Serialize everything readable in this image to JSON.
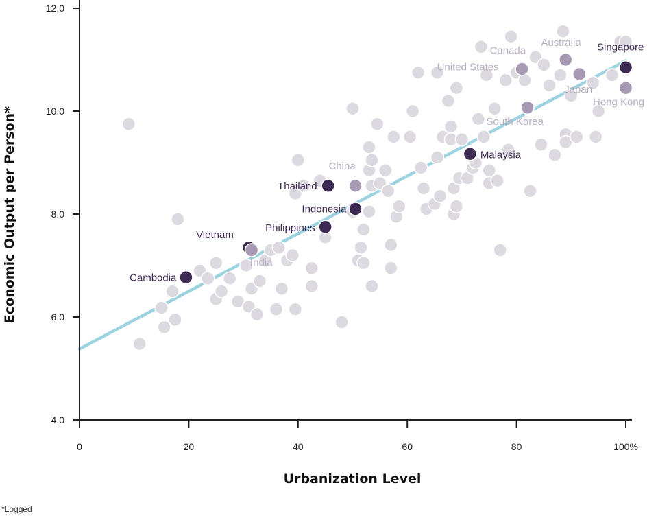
{
  "chart_data": {
    "type": "scatter",
    "title": "",
    "xlabel": "Urbanization Level",
    "ylabel": "Economic Output per Person*",
    "footnote": "*Logged",
    "xlim": [
      0,
      100
    ],
    "ylim": [
      4.0,
      12.0
    ],
    "x_ticks": [
      0,
      20,
      40,
      60,
      80,
      100
    ],
    "x_tick_labels": [
      "0",
      "20",
      "40",
      "60",
      "80",
      "100%"
    ],
    "y_ticks": [
      4.0,
      6.0,
      8.0,
      10.0,
      12.0
    ],
    "y_tick_labels": [
      "4.0",
      "6.0",
      "8.0",
      "10.0",
      "12.0"
    ],
    "colors": {
      "background_point": "#dcdae0",
      "background_point_stroke": "#ffffff",
      "asia_dark": "#3d2a52",
      "asia_light": "#a89ab5",
      "label_dark": "#3d2a52",
      "label_light": "#b5adc0",
      "trend_line": "#9dd3e0",
      "axis": "#231f20"
    },
    "trend_line": {
      "x": [
        0,
        100
      ],
      "y": [
        5.38,
        10.98
      ]
    },
    "background_points": [
      {
        "x": 9,
        "y": 9.75
      },
      {
        "x": 11,
        "y": 5.48
      },
      {
        "x": 15,
        "y": 6.18
      },
      {
        "x": 15.5,
        "y": 5.8
      },
      {
        "x": 17,
        "y": 6.5
      },
      {
        "x": 17.5,
        "y": 5.95
      },
      {
        "x": 18,
        "y": 7.9
      },
      {
        "x": 22,
        "y": 6.9
      },
      {
        "x": 23.5,
        "y": 6.75
      },
      {
        "x": 25,
        "y": 6.35
      },
      {
        "x": 25,
        "y": 7.05
      },
      {
        "x": 26,
        "y": 6.5
      },
      {
        "x": 27.5,
        "y": 6.75
      },
      {
        "x": 29,
        "y": 6.3
      },
      {
        "x": 30.5,
        "y": 7.0
      },
      {
        "x": 31,
        "y": 6.2
      },
      {
        "x": 31.5,
        "y": 6.55
      },
      {
        "x": 32.5,
        "y": 6.05
      },
      {
        "x": 33,
        "y": 6.7
      },
      {
        "x": 34,
        "y": 7.1
      },
      {
        "x": 35,
        "y": 7.3
      },
      {
        "x": 36,
        "y": 6.15
      },
      {
        "x": 36.5,
        "y": 7.35
      },
      {
        "x": 37,
        "y": 6.55
      },
      {
        "x": 38,
        "y": 7.1
      },
      {
        "x": 39,
        "y": 7.2
      },
      {
        "x": 39.5,
        "y": 8.4
      },
      {
        "x": 39.5,
        "y": 6.15
      },
      {
        "x": 40,
        "y": 9.05
      },
      {
        "x": 41,
        "y": 8.55
      },
      {
        "x": 42.5,
        "y": 6.95
      },
      {
        "x": 42.5,
        "y": 6.6
      },
      {
        "x": 44,
        "y": 8.65
      },
      {
        "x": 45,
        "y": 7.55
      },
      {
        "x": 48,
        "y": 5.9
      },
      {
        "x": 50,
        "y": 8.05
      },
      {
        "x": 50,
        "y": 10.05
      },
      {
        "x": 51,
        "y": 7.1
      },
      {
        "x": 51.5,
        "y": 7.35
      },
      {
        "x": 52,
        "y": 7.7
      },
      {
        "x": 52,
        "y": 7.05
      },
      {
        "x": 53,
        "y": 8.05
      },
      {
        "x": 53,
        "y": 8.85
      },
      {
        "x": 53,
        "y": 9.3
      },
      {
        "x": 53.5,
        "y": 8.55
      },
      {
        "x": 53.5,
        "y": 9.05
      },
      {
        "x": 53.5,
        "y": 6.6
      },
      {
        "x": 54.5,
        "y": 9.75
      },
      {
        "x": 55,
        "y": 8.6
      },
      {
        "x": 56,
        "y": 8.85
      },
      {
        "x": 56.5,
        "y": 8.45
      },
      {
        "x": 57,
        "y": 7.4
      },
      {
        "x": 57,
        "y": 6.95
      },
      {
        "x": 57.5,
        "y": 9.5
      },
      {
        "x": 58,
        "y": 7.95
      },
      {
        "x": 58.5,
        "y": 8.15
      },
      {
        "x": 60.5,
        "y": 9.5
      },
      {
        "x": 61,
        "y": 10.0
      },
      {
        "x": 62,
        "y": 10.75
      },
      {
        "x": 62.5,
        "y": 8.9
      },
      {
        "x": 63,
        "y": 8.5
      },
      {
        "x": 63.5,
        "y": 8.1
      },
      {
        "x": 65,
        "y": 8.2
      },
      {
        "x": 65.5,
        "y": 10.75
      },
      {
        "x": 65.5,
        "y": 9.1
      },
      {
        "x": 66,
        "y": 8.35
      },
      {
        "x": 66.5,
        "y": 9.5
      },
      {
        "x": 67.5,
        "y": 10.2
      },
      {
        "x": 68,
        "y": 9.7
      },
      {
        "x": 68,
        "y": 9.45
      },
      {
        "x": 68.5,
        "y": 8.5
      },
      {
        "x": 68.5,
        "y": 8.0
      },
      {
        "x": 69,
        "y": 10.45
      },
      {
        "x": 69,
        "y": 8.15
      },
      {
        "x": 69.5,
        "y": 8.7
      },
      {
        "x": 70,
        "y": 9.45
      },
      {
        "x": 71,
        "y": 8.7
      },
      {
        "x": 72,
        "y": 8.9
      },
      {
        "x": 72.5,
        "y": 9.0
      },
      {
        "x": 73,
        "y": 9.85
      },
      {
        "x": 73.5,
        "y": 11.25
      },
      {
        "x": 74,
        "y": 9.5
      },
      {
        "x": 74.5,
        "y": 10.7
      },
      {
        "x": 75,
        "y": 8.85
      },
      {
        "x": 75,
        "y": 8.6
      },
      {
        "x": 76,
        "y": 10.05
      },
      {
        "x": 76.5,
        "y": 8.65
      },
      {
        "x": 77,
        "y": 7.3
      },
      {
        "x": 78,
        "y": 10.6
      },
      {
        "x": 78.5,
        "y": 9.25
      },
      {
        "x": 79,
        "y": 11.45
      },
      {
        "x": 80,
        "y": 10.75
      },
      {
        "x": 81.5,
        "y": 10.6
      },
      {
        "x": 82.5,
        "y": 8.45
      },
      {
        "x": 83.5,
        "y": 11.05
      },
      {
        "x": 84.5,
        "y": 9.35
      },
      {
        "x": 85,
        "y": 10.9
      },
      {
        "x": 86,
        "y": 10.5
      },
      {
        "x": 87,
        "y": 9.15
      },
      {
        "x": 88,
        "y": 10.7
      },
      {
        "x": 88.5,
        "y": 11.55
      },
      {
        "x": 89,
        "y": 9.55
      },
      {
        "x": 89,
        "y": 9.4
      },
      {
        "x": 90,
        "y": 10.3
      },
      {
        "x": 91,
        "y": 9.5
      },
      {
        "x": 94,
        "y": 10.55
      },
      {
        "x": 94.5,
        "y": 9.5
      },
      {
        "x": 95,
        "y": 10.0
      },
      {
        "x": 97.5,
        "y": 10.7
      },
      {
        "x": 99,
        "y": 11.35
      },
      {
        "x": 100,
        "y": 11.35
      }
    ],
    "highlighted_points": [
      {
        "name": "Singapore",
        "x": 100,
        "y": 10.85,
        "tone": "dark"
      },
      {
        "name": "Australia",
        "x": 89,
        "y": 11.0,
        "tone": "light"
      },
      {
        "name": "Canada",
        "x": 81,
        "y": 10.82,
        "tone": "light"
      },
      {
        "name": "United States",
        "x": 81,
        "y": 10.82,
        "tone": "light"
      },
      {
        "name": "Japan",
        "x": 91.5,
        "y": 10.72,
        "tone": "light"
      },
      {
        "name": "Hong Kong",
        "x": 100,
        "y": 10.45,
        "tone": "light"
      },
      {
        "name": "South Korea",
        "x": 82,
        "y": 10.07,
        "tone": "light"
      },
      {
        "name": "Malaysia",
        "x": 71.5,
        "y": 9.17,
        "tone": "dark"
      },
      {
        "name": "China",
        "x": 50.5,
        "y": 8.55,
        "tone": "light"
      },
      {
        "name": "Thailand",
        "x": 45.5,
        "y": 8.55,
        "tone": "dark"
      },
      {
        "name": "Indonesia",
        "x": 50.5,
        "y": 8.1,
        "tone": "dark"
      },
      {
        "name": "Philippines",
        "x": 45,
        "y": 7.75,
        "tone": "dark"
      },
      {
        "name": "Vietnam",
        "x": 31,
        "y": 7.35,
        "tone": "dark"
      },
      {
        "name": "India",
        "x": 31.5,
        "y": 7.3,
        "tone": "light"
      },
      {
        "name": "Cambodia",
        "x": 19.5,
        "y": 6.77,
        "tone": "dark"
      }
    ]
  }
}
